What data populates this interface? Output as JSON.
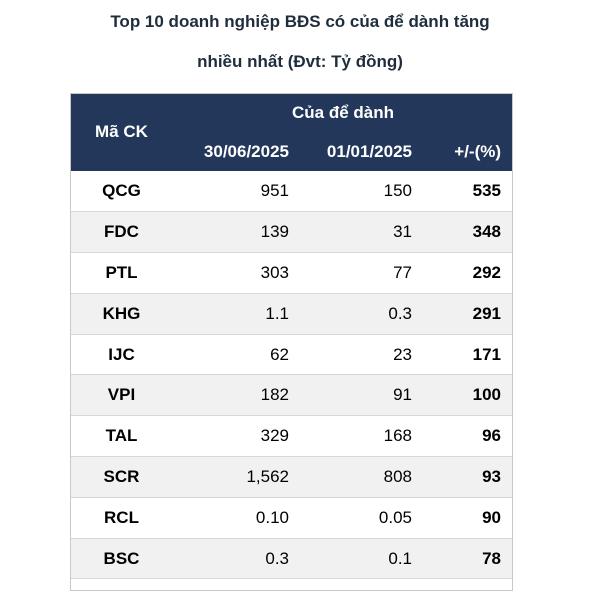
{
  "title": {
    "line1": "Top 10 doanh nghiệp BĐS có của để dành tăng",
    "line2": "nhiều nhất (Đvt: Tỷ đồng)"
  },
  "table": {
    "col_code": "Mã CK",
    "group_header": "Của để dành",
    "col_date1": "30/06/2025",
    "col_date2": "01/01/2025",
    "col_change": "+/-(%)",
    "rows": [
      {
        "code": "QCG",
        "v1": "951",
        "v2": "150",
        "change": "535"
      },
      {
        "code": "FDC",
        "v1": "139",
        "v2": "31",
        "change": "348"
      },
      {
        "code": "PTL",
        "v1": "303",
        "v2": "77",
        "change": "292"
      },
      {
        "code": "KHG",
        "v1": "1.1",
        "v2": "0.3",
        "change": "291"
      },
      {
        "code": "IJC",
        "v1": "62",
        "v2": "23",
        "change": "171"
      },
      {
        "code": "VPI",
        "v1": "182",
        "v2": "91",
        "change": "100"
      },
      {
        "code": "TAL",
        "v1": "329",
        "v2": "168",
        "change": "96"
      },
      {
        "code": "SCR",
        "v1": "1,562",
        "v2": "808",
        "change": "93"
      },
      {
        "code": "RCL",
        "v1": "0.10",
        "v2": "0.05",
        "change": "90"
      },
      {
        "code": "BSC",
        "v1": "0.3",
        "v2": "0.1",
        "change": "78"
      }
    ]
  },
  "colors": {
    "header_bg": "#22375a",
    "header_text": "#ffffff",
    "stripe": "#f1f1f1"
  }
}
